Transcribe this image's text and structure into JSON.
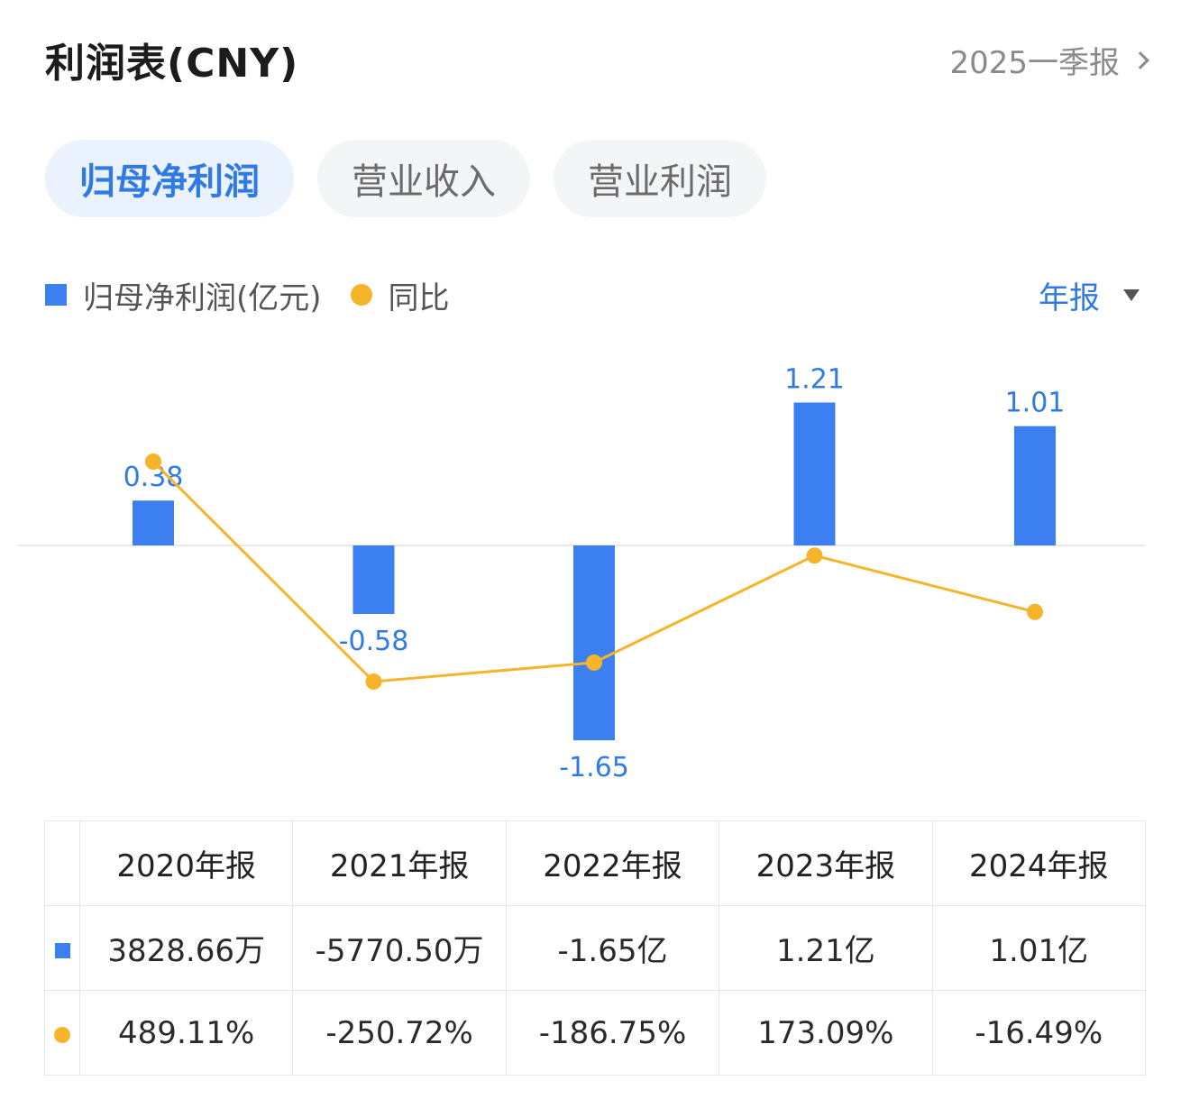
{
  "header": {
    "title": "利润表(CNY)",
    "period": "2025一季报"
  },
  "tabs": [
    {
      "label": "归母净利润",
      "active": true
    },
    {
      "label": "营业收入",
      "active": false
    },
    {
      "label": "营业利润",
      "active": false
    }
  ],
  "legend": {
    "bar_label": "归母净利润(亿元)",
    "line_label": "同比"
  },
  "mode_selector": "年报",
  "colors": {
    "bar": "#3b7ff0",
    "line": "#f6b42b",
    "accent": "#2f7ae5",
    "positive": "#e84a4a",
    "negative": "#2e9e6b"
  },
  "chart_data": {
    "type": "bar",
    "categories": [
      "2020年报",
      "2021年报",
      "2022年报",
      "2023年报",
      "2024年报"
    ],
    "series": [
      {
        "name": "归母净利润(亿元)",
        "type": "bar",
        "values": [
          0.38,
          -0.58,
          -1.65,
          1.21,
          1.01
        ],
        "labels": [
          "0.38",
          "-0.58",
          "-1.65",
          "1.21",
          "1.01"
        ]
      },
      {
        "name": "同比",
        "type": "line",
        "values": [
          489.11,
          -250.72,
          -186.75,
          173.09,
          -16.49
        ]
      }
    ]
  },
  "table": {
    "headers": [
      "2020年报",
      "2021年报",
      "2022年报",
      "2023年报",
      "2024年报"
    ],
    "profit": [
      "3828.66万",
      "-5770.50万",
      "-1.65亿",
      "1.21亿",
      "1.01亿"
    ],
    "yoy": [
      "489.11%",
      "-250.72%",
      "-186.75%",
      "173.09%",
      "-16.49%"
    ]
  }
}
